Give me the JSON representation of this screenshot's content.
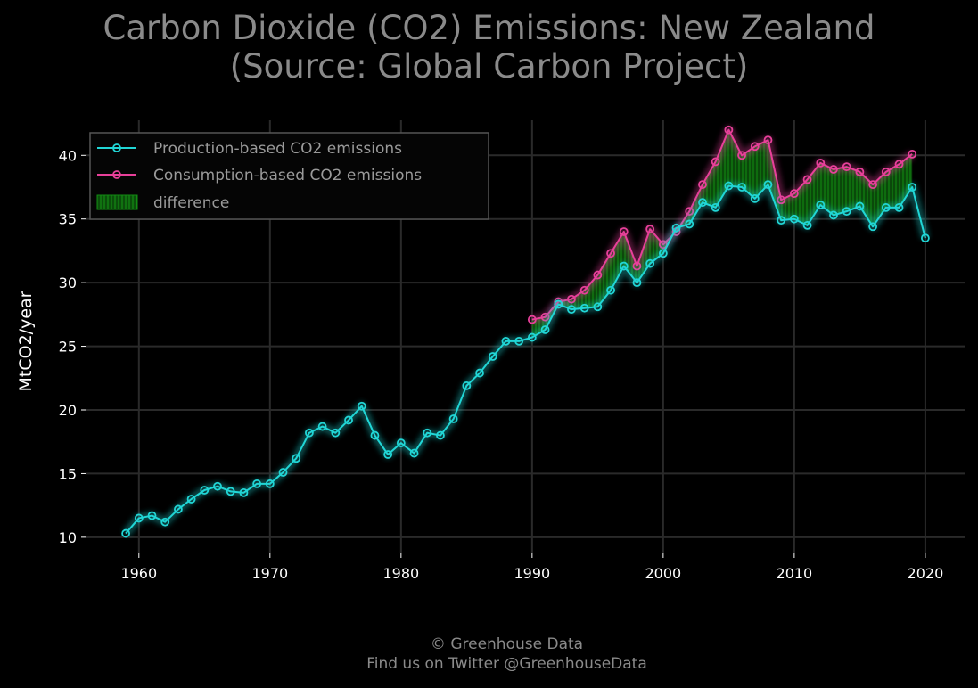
{
  "title": {
    "line1": "Carbon Dioxide (CO2) Emissions: New Zealand",
    "line2": "(Source: Global Carbon Project)"
  },
  "footer": {
    "line1": "© Greenhouse Data",
    "line2": "Find us on Twitter @GreenhouseData"
  },
  "colors": {
    "background": "#000000",
    "production": "#21d6d6",
    "consumption": "#e8409a",
    "difference": "#0f7a0f",
    "grid": "#2a2a2a",
    "text": "#ffffff",
    "title_text": "#8a8a8a"
  },
  "chart_data": {
    "type": "line",
    "title": "Carbon Dioxide (CO2) Emissions: New Zealand (Source: Global Carbon Project)",
    "xlabel": "",
    "ylabel": "MtCO2/year",
    "xlim": [
      1956,
      2023
    ],
    "ylim": [
      8.8,
      43.8
    ],
    "xticks": [
      1960,
      1970,
      1980,
      1990,
      2000,
      2010,
      2020
    ],
    "yticks": [
      10,
      15,
      20,
      25,
      30,
      35,
      40
    ],
    "grid": true,
    "legend_position": "top-left",
    "series": [
      {
        "name": "Production-based CO2 emissions",
        "color": "#21d6d6",
        "x": [
          1959,
          1960,
          1961,
          1962,
          1963,
          1964,
          1965,
          1966,
          1967,
          1968,
          1969,
          1970,
          1971,
          1972,
          1973,
          1974,
          1975,
          1976,
          1977,
          1978,
          1979,
          1980,
          1981,
          1982,
          1983,
          1984,
          1985,
          1986,
          1987,
          1988,
          1989,
          1990,
          1991,
          1992,
          1993,
          1994,
          1995,
          1996,
          1997,
          1998,
          1999,
          2000,
          2001,
          2002,
          2003,
          2004,
          2005,
          2006,
          2007,
          2008,
          2009,
          2010,
          2011,
          2012,
          2013,
          2014,
          2015,
          2016,
          2017,
          2018,
          2019,
          2020
        ],
        "y": [
          10.3,
          11.5,
          11.7,
          11.2,
          12.2,
          13.0,
          13.7,
          14.0,
          13.6,
          13.5,
          14.2,
          14.2,
          15.1,
          16.2,
          18.2,
          18.7,
          18.2,
          19.2,
          20.3,
          18.0,
          16.5,
          17.4,
          16.6,
          18.2,
          18.0,
          19.3,
          21.9,
          22.9,
          24.2,
          25.4,
          25.4,
          25.7,
          26.3,
          28.3,
          27.9,
          28.0,
          28.1,
          29.4,
          31.3,
          30.0,
          31.5,
          32.3,
          34.3,
          34.6,
          36.3,
          35.9,
          37.6,
          37.5,
          36.6,
          37.7,
          34.9,
          35.0,
          34.5,
          36.1,
          35.3,
          35.6,
          36.0,
          34.4,
          35.9,
          35.9,
          37.5,
          33.5
        ]
      },
      {
        "name": "Consumption-based CO2 emissions",
        "color": "#e8409a",
        "x": [
          1990,
          1991,
          1992,
          1993,
          1994,
          1995,
          1996,
          1997,
          1998,
          1999,
          2000,
          2001,
          2002,
          2003,
          2004,
          2005,
          2006,
          2007,
          2008,
          2009,
          2010,
          2011,
          2012,
          2013,
          2014,
          2015,
          2016,
          2017,
          2018,
          2019
        ],
        "y": [
          27.1,
          27.3,
          28.5,
          28.7,
          29.4,
          30.6,
          32.3,
          34.0,
          31.3,
          34.2,
          33.0,
          34.0,
          35.6,
          37.7,
          39.5,
          42.0,
          40.0,
          40.7,
          41.2,
          36.5,
          37.0,
          38.1,
          39.4,
          38.9,
          39.1,
          38.7,
          37.7,
          38.7,
          39.3,
          40.1
        ]
      },
      {
        "name": "difference",
        "color": "#0f7a0f",
        "kind": "fill_between"
      }
    ]
  }
}
